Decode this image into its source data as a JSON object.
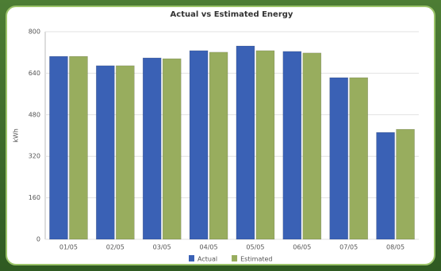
{
  "chart_data": {
    "type": "bar",
    "title": "Actual vs Estimated Energy",
    "y_label": "kWh",
    "categories": [
      "01/05",
      "02/05",
      "03/05",
      "04/05",
      "05/05",
      "06/05",
      "07/05",
      "08/05"
    ],
    "series": [
      {
        "name": "Actual",
        "color": "#3a61b5",
        "values": [
          705,
          669,
          699,
          727,
          745,
          724,
          623,
          412
        ]
      },
      {
        "name": "Estimated",
        "color": "#98ad5e",
        "values": [
          705,
          669,
          696,
          721,
          727,
          718,
          623,
          424
        ]
      }
    ],
    "ylim": [
      0,
      800
    ],
    "yticks": [
      0,
      160,
      320,
      480,
      640,
      800
    ],
    "grid": true,
    "legend": "bottom"
  }
}
